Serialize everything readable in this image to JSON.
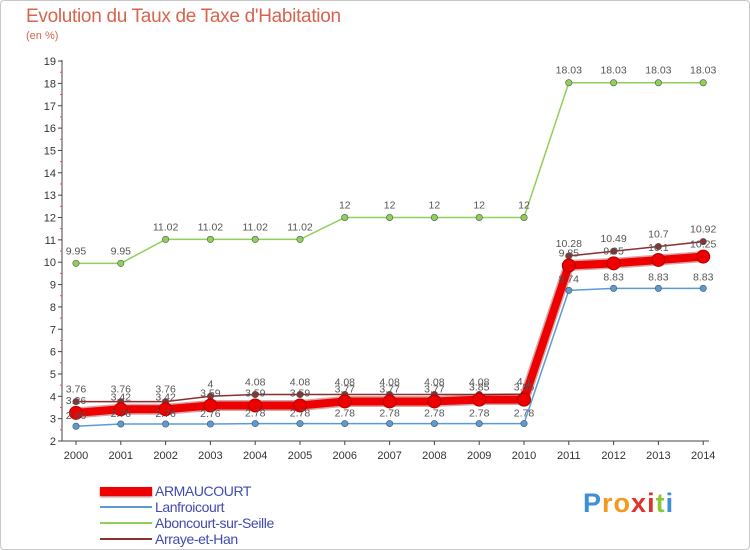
{
  "title": "Evolution du Taux de Taxe d'Habitation",
  "unit_label": "(en %)",
  "brand": {
    "letters": [
      "P",
      "r",
      "o",
      "x",
      "i",
      "t",
      "i"
    ],
    "colors": [
      "#3d8fd6",
      "#f39a1e",
      "#f39a1e",
      "#e0322d",
      "#e0322d",
      "#8cc63f",
      "#3d8fd6"
    ]
  },
  "chart_data": {
    "type": "line",
    "title": "Evolution du Taux de Taxe d'Habitation",
    "ylabel": "(en %)",
    "xlabel": "",
    "ylim": [
      2,
      19
    ],
    "grid": false,
    "x": [
      "2000",
      "2001",
      "2002",
      "2003",
      "2004",
      "2005",
      "2006",
      "2007",
      "2008",
      "2009",
      "2010",
      "2011",
      "2012",
      "2013",
      "2014"
    ],
    "y_ticks": [
      "2",
      "3",
      "4",
      "5",
      "6",
      "7",
      "8",
      "9",
      "10",
      "11",
      "12",
      "13",
      "14",
      "15",
      "16",
      "17",
      "18",
      "19"
    ],
    "series": [
      {
        "name": "ARMAUCOURT",
        "color": "#ee0000",
        "thick": true,
        "values": [
          3.26,
          3.42,
          3.42,
          3.59,
          3.59,
          3.59,
          3.77,
          3.77,
          3.77,
          3.85,
          3.85,
          9.85,
          9.95,
          10.1,
          10.25
        ],
        "labels": [
          "3.26",
          "3.42",
          "3.42",
          "3.59",
          "3.59",
          "3.59",
          "3.77",
          "3.77",
          "3.77",
          "3.85",
          "3.85",
          "9.85",
          "9.95",
          "10.1",
          "10.25"
        ]
      },
      {
        "name": "Lanfroicourt",
        "color": "#5b9bd5",
        "thick": false,
        "values": [
          2.66,
          2.76,
          2.76,
          2.76,
          2.78,
          2.78,
          2.78,
          2.78,
          2.78,
          2.78,
          2.78,
          8.74,
          8.83,
          8.83,
          8.83
        ],
        "labels": [
          "2.66",
          "2.76",
          "2.76",
          "2.76",
          "2.78",
          "2.78",
          "2.78",
          "2.78",
          "2.78",
          "2.78",
          "2.78",
          "8.74",
          "8.83",
          "8.83",
          "8.83"
        ]
      },
      {
        "name": "Aboncourt-sur-Seille",
        "color": "#8ed05a",
        "thick": false,
        "values": [
          9.95,
          9.95,
          11.02,
          11.02,
          11.02,
          11.02,
          12,
          12,
          12,
          12,
          12,
          18.03,
          18.03,
          18.03,
          18.03
        ],
        "labels": [
          "9.95",
          "9.95",
          "11.02",
          "11.02",
          "11.02",
          "11.02",
          "12",
          "12",
          "12",
          "12",
          "12",
          "18.03",
          "18.03",
          "18.03",
          "18.03"
        ]
      },
      {
        "name": "Arraye-et-Han",
        "color": "#8b2f2f",
        "thick": false,
        "values": [
          3.76,
          3.76,
          3.76,
          4,
          4.08,
          4.08,
          4.08,
          4.08,
          4.08,
          4.08,
          4.1,
          10.28,
          10.49,
          10.7,
          10.92
        ],
        "labels": [
          "3.76",
          "3.76",
          "3.76",
          "4",
          "4.08",
          "4.08",
          "4.08",
          "4.08",
          "4.08",
          "4.08",
          "4.1",
          "10.28",
          "10.49",
          "10.7",
          "10.92"
        ]
      }
    ]
  }
}
